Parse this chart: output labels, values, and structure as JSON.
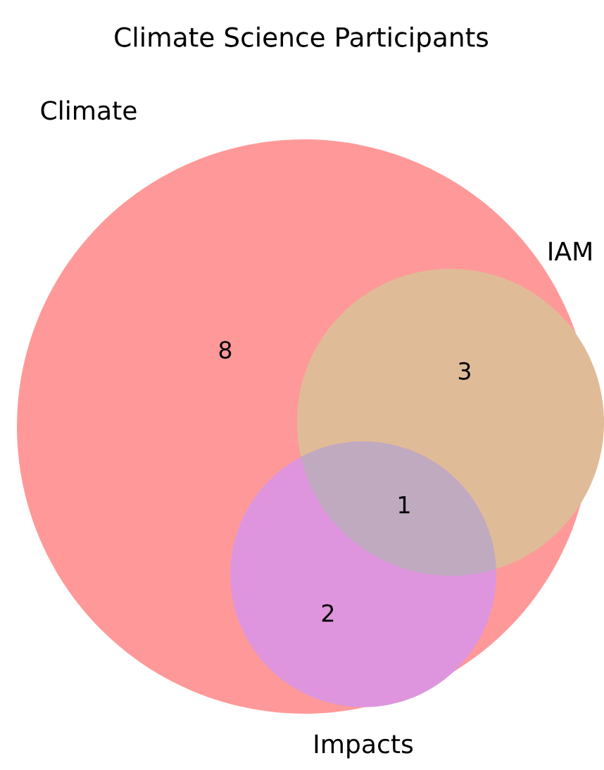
{
  "chart_data": {
    "type": "other",
    "title": "Climate Science Participants",
    "categories": [
      null,
      null,
      null,
      null
    ],
    "values": [
      8,
      3,
      1,
      2
    ],
    "colors": [
      "#ff9999",
      "#dfbc97",
      "#c0aac0",
      "#de95de"
    ],
    "data_labels": true,
    "annotations": [
      "Climate",
      "IAM",
      "Impacts"
    ]
  }
}
